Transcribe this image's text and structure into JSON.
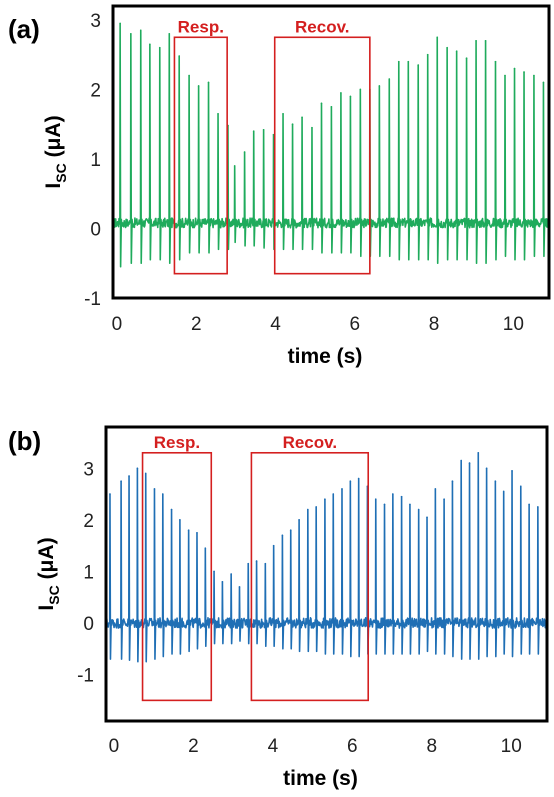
{
  "chart_data": [
    {
      "type": "line",
      "panel_label": "(a)",
      "xlabel": "time (s)",
      "ylabel_main": "I",
      "ylabel_sub": "SC",
      "ylabel_unit": " (μA)",
      "xlim": [
        -0.1,
        10.9
      ],
      "ylim": [
        -1.0,
        3.2
      ],
      "xticks": [
        "0",
        "2",
        "4",
        "6",
        "8",
        "10"
      ],
      "yticks": [
        "-1",
        "0",
        "1",
        "2",
        "3"
      ],
      "grid": false,
      "color": "#1fab5c",
      "baseline": 0.08,
      "spike_times": [
        0.08,
        0.35,
        0.6,
        0.83,
        1.08,
        1.32,
        1.57,
        1.82,
        2.06,
        2.31,
        2.55,
        2.8,
        2.97,
        3.22,
        3.45,
        3.7,
        3.95,
        4.19,
        4.43,
        4.67,
        4.92,
        5.16,
        5.41,
        5.65,
        5.89,
        6.14,
        6.38,
        6.62,
        6.87,
        7.11,
        7.35,
        7.6,
        7.84,
        8.08,
        8.33,
        8.57,
        8.82,
        9.06,
        9.3,
        9.55,
        9.79,
        10.03,
        10.27,
        10.52,
        10.76
      ],
      "spike_peaks": [
        2.95,
        2.8,
        2.85,
        2.65,
        2.6,
        2.8,
        2.48,
        2.2,
        2.05,
        2.1,
        1.65,
        1.48,
        0.9,
        1.1,
        1.4,
        1.42,
        1.35,
        1.65,
        1.5,
        1.6,
        1.45,
        1.8,
        1.75,
        1.95,
        1.9,
        2.0,
        2.0,
        2.05,
        2.15,
        2.4,
        2.4,
        2.35,
        2.5,
        2.75,
        2.6,
        2.55,
        2.45,
        2.7,
        2.7,
        2.4,
        2.2,
        2.3,
        2.25,
        2.2,
        2.1
      ],
      "spike_troughs": [
        -0.55,
        -0.5,
        -0.5,
        -0.45,
        -0.45,
        -0.5,
        -0.45,
        -0.35,
        -0.35,
        -0.35,
        -0.3,
        -0.3,
        -0.2,
        -0.25,
        -0.25,
        -0.28,
        -0.3,
        -0.3,
        -0.3,
        -0.3,
        -0.3,
        -0.35,
        -0.35,
        -0.35,
        -0.35,
        -0.4,
        -0.4,
        -0.4,
        -0.4,
        -0.45,
        -0.45,
        -0.45,
        -0.45,
        -0.5,
        -0.45,
        -0.45,
        -0.45,
        -0.5,
        -0.5,
        -0.45,
        -0.4,
        -0.45,
        -0.45,
        -0.4,
        -0.4
      ],
      "noise_amplitude": 0.07,
      "annotations": [
        {
          "label": "Resp.",
          "x0": 1.45,
          "x1": 2.78,
          "y0": -0.65,
          "y1": 2.75
        },
        {
          "label": "Recov.",
          "x0": 3.98,
          "x1": 6.38,
          "y0": -0.65,
          "y1": 2.75
        }
      ]
    },
    {
      "type": "line",
      "panel_label": "(b)",
      "xlabel": "time (s)",
      "ylabel_main": "I",
      "ylabel_sub": "SC",
      "ylabel_unit": " (μA)",
      "xlim": [
        -0.2,
        10.9
      ],
      "ylim": [
        -1.9,
        3.8
      ],
      "xticks": [
        "0",
        "2",
        "4",
        "6",
        "8",
        "10"
      ],
      "yticks": [
        "-1",
        "0",
        "1",
        "2",
        "3"
      ],
      "grid": false,
      "color": "#1f6fb5",
      "baseline": 0.0,
      "spike_times": [
        -0.1,
        0.18,
        0.38,
        0.59,
        0.8,
        1.02,
        1.23,
        1.45,
        1.66,
        1.88,
        2.09,
        2.3,
        2.52,
        2.73,
        2.95,
        3.16,
        3.38,
        3.59,
        3.81,
        4.02,
        4.24,
        4.45,
        4.66,
        4.88,
        5.09,
        5.31,
        5.52,
        5.74,
        5.95,
        6.16,
        6.38,
        6.59,
        6.81,
        7.02,
        7.24,
        7.45,
        7.67,
        7.88,
        8.09,
        8.31,
        8.52,
        8.74,
        8.95,
        9.17,
        9.38,
        9.6,
        9.81,
        10.02,
        10.24,
        10.45,
        10.67
      ],
      "spike_peaks": [
        2.5,
        2.75,
        2.85,
        3.0,
        2.9,
        2.6,
        2.5,
        2.2,
        2.0,
        1.8,
        1.75,
        1.45,
        1.0,
        0.8,
        0.95,
        0.7,
        1.15,
        1.2,
        1.15,
        1.5,
        1.7,
        1.8,
        2.0,
        2.2,
        2.25,
        2.4,
        2.5,
        2.6,
        2.75,
        2.8,
        2.65,
        2.4,
        2.3,
        2.5,
        2.45,
        2.3,
        2.2,
        2.05,
        2.6,
        2.4,
        2.75,
        3.15,
        3.1,
        3.3,
        3.0,
        2.75,
        2.55,
        2.95,
        2.65,
        2.3,
        2.25
      ],
      "spike_troughs": [
        -0.7,
        -0.7,
        -0.72,
        -0.75,
        -0.75,
        -0.7,
        -0.65,
        -0.6,
        -0.6,
        -0.55,
        -0.5,
        -0.45,
        -0.4,
        -0.4,
        -0.4,
        -0.35,
        -0.4,
        -0.4,
        -0.45,
        -0.45,
        -0.5,
        -0.5,
        -0.55,
        -0.55,
        -0.55,
        -0.6,
        -0.6,
        -0.6,
        -0.65,
        -0.65,
        -0.6,
        -0.6,
        -0.6,
        -0.6,
        -0.6,
        -0.6,
        -0.6,
        -0.55,
        -0.6,
        -0.6,
        -0.65,
        -0.7,
        -0.7,
        -0.7,
        -0.65,
        -0.65,
        -0.6,
        -0.65,
        -0.6,
        -0.6,
        -0.6
      ],
      "noise_amplitude": 0.1,
      "annotations": [
        {
          "label": "Resp.",
          "x0": 0.72,
          "x1": 2.45,
          "y0": -1.5,
          "y1": 3.3
        },
        {
          "label": "Recov.",
          "x0": 3.46,
          "x1": 6.4,
          "y0": -1.5,
          "y1": 3.3
        }
      ]
    }
  ]
}
